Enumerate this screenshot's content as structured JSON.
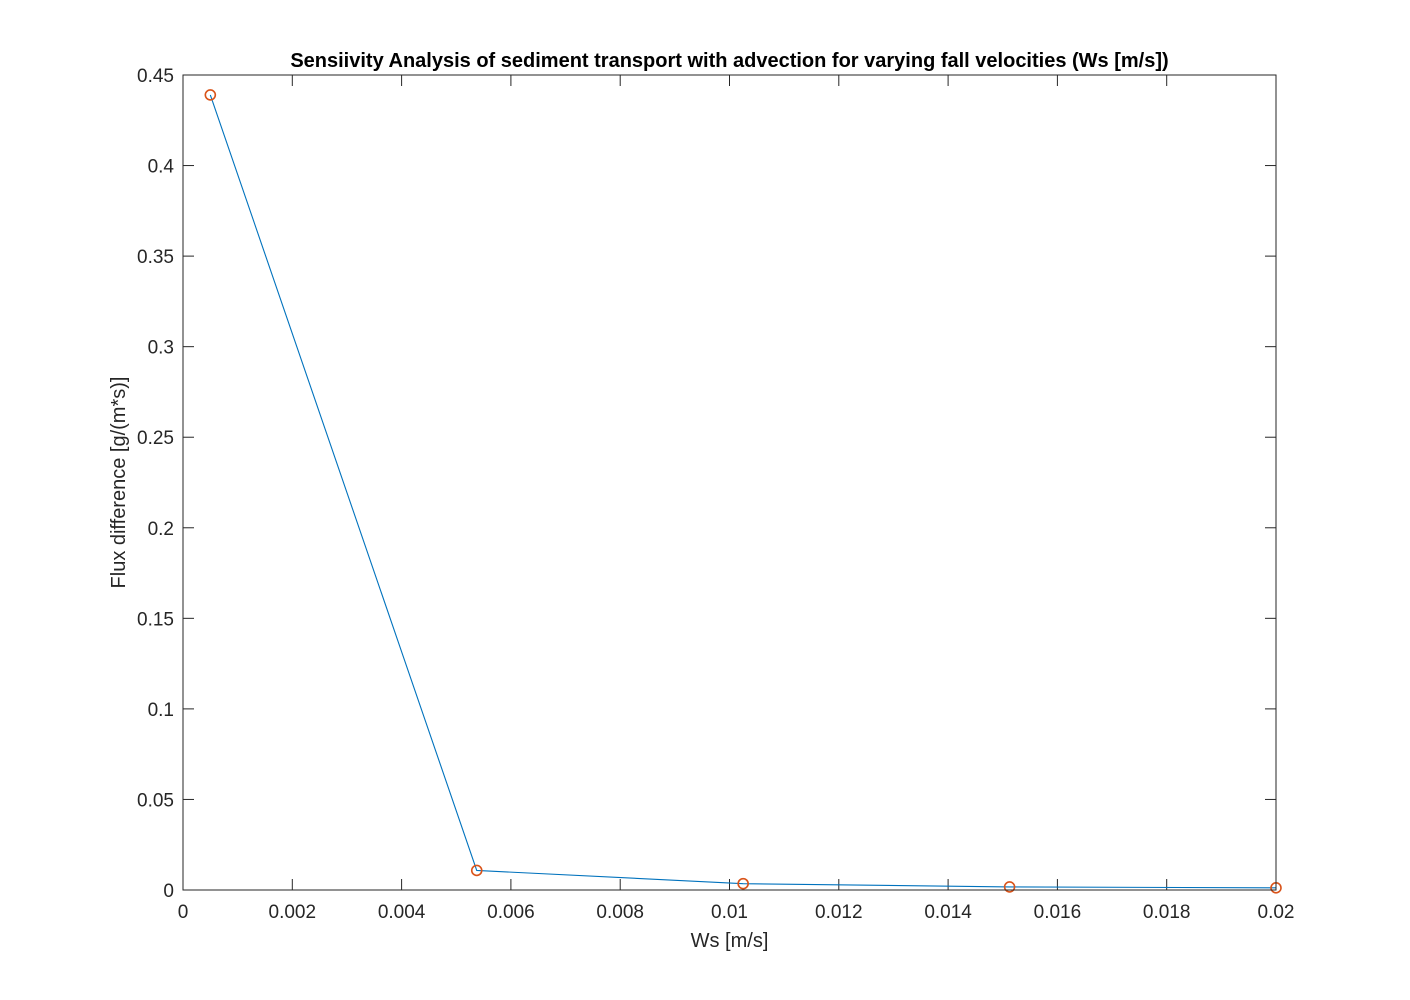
{
  "chart_data": {
    "type": "line",
    "title": "Sensiivity Analysis of sediment transport with advection for varying fall velocities (Ws [m/s])",
    "xlabel": "Ws [m/s]",
    "ylabel": "Flux difference [g/(m*s)]",
    "xlim": [
      0,
      0.02
    ],
    "ylim": [
      0,
      0.45
    ],
    "xticks": [
      0,
      0.002,
      0.004,
      0.006,
      0.008,
      0.01,
      0.012,
      0.014,
      0.016,
      0.018,
      0.02
    ],
    "xtick_labels": [
      "0",
      "0.002",
      "0.004",
      "0.006",
      "0.008",
      "0.01",
      "0.012",
      "0.014",
      "0.016",
      "0.018",
      "0.02"
    ],
    "yticks": [
      0,
      0.05,
      0.1,
      0.15,
      0.2,
      0.25,
      0.3,
      0.35,
      0.4,
      0.45
    ],
    "ytick_labels": [
      "0",
      "0.05",
      "0.1",
      "0.15",
      "0.2",
      "0.25",
      "0.3",
      "0.35",
      "0.4",
      "0.45"
    ],
    "grid": false,
    "series": [
      {
        "x": [
          0.0005,
          0.005375,
          0.01025,
          0.015125,
          0.02
        ],
        "y": [
          0.439,
          0.0108,
          0.0035,
          0.0017,
          0.0012
        ],
        "line_color": "#0072BD",
        "marker": "circle",
        "marker_color": "#D95319"
      }
    ]
  }
}
